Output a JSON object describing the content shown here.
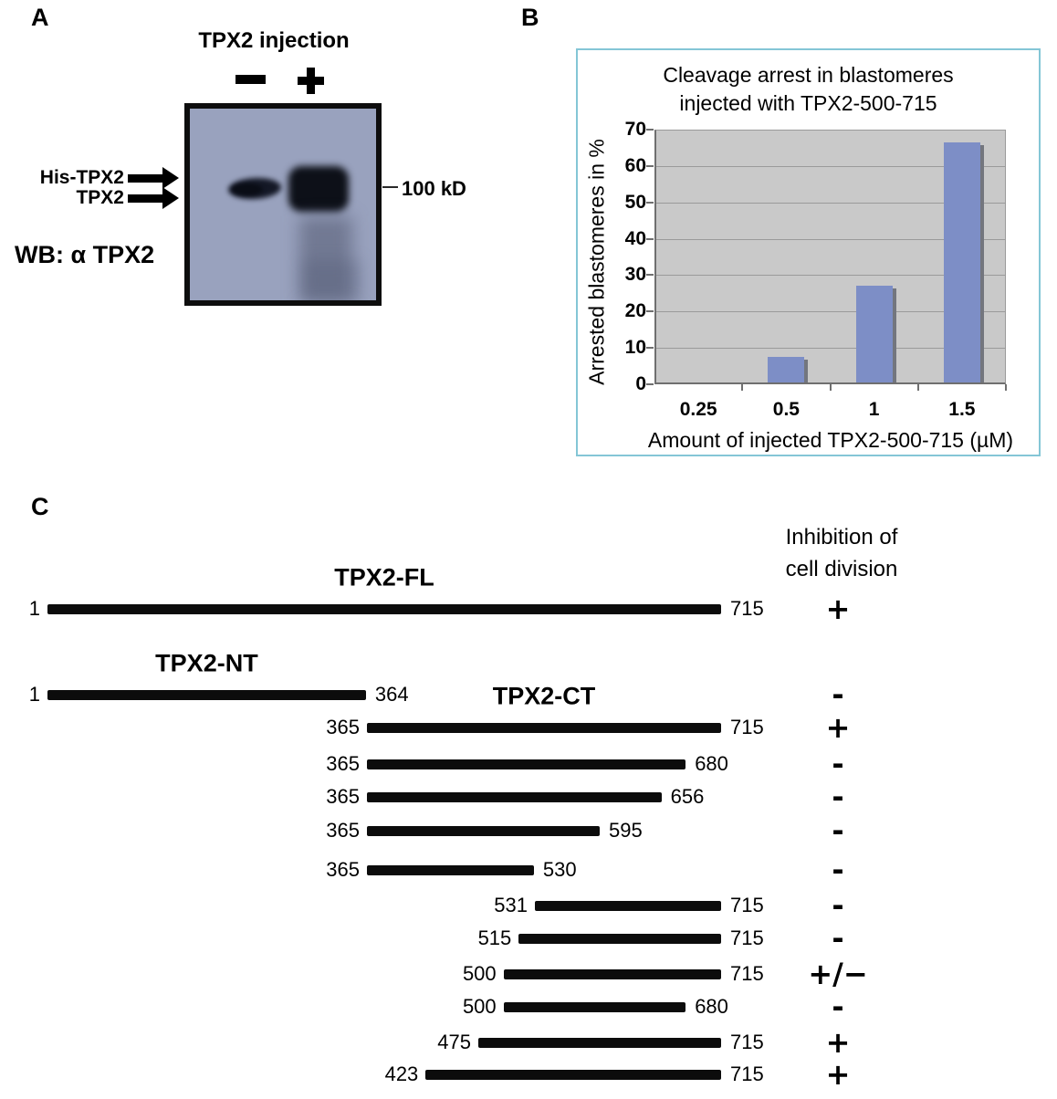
{
  "panel_a": {
    "label": "A",
    "header": "TPX2 injection",
    "lane_symbols": [
      "-",
      "+"
    ],
    "band_labels": [
      "His-TPX2",
      "TPX2"
    ],
    "marker_label": "100 kD",
    "caption": "WB: α TPX2"
  },
  "panel_b": {
    "label": "B",
    "title_lines": [
      "Cleavage arrest in blastomeres",
      "injected with TPX2-500-715"
    ]
  },
  "chart_data": {
    "type": "bar",
    "title": "Cleavage arrest in blastomeres injected with TPX2-500-715",
    "categories": [
      "0.25",
      "0.5",
      "1",
      "1.5"
    ],
    "values": [
      0,
      7.5,
      27,
      66.5
    ],
    "xlabel": "Amount of injected TPX2-500-715 (µM)",
    "ylabel": "Arrested blastomeres in %",
    "ylim": [
      0,
      70
    ],
    "ytick_step": 10,
    "grid": true,
    "legend": false,
    "bar_color": "#7d8ec6",
    "plot_bg": "#c9c9c9",
    "gridline_color": "#9a9a9a"
  },
  "panel_c": {
    "label": "C",
    "column_header_lines": [
      "Inhibition of",
      "cell division"
    ],
    "constructs": [
      {
        "name": "TPX2-FL",
        "start": 1,
        "end": 715,
        "inhibition": "+"
      },
      {
        "name": "TPX2-NT",
        "start": 1,
        "end": 364,
        "inhibition": "-"
      },
      {
        "name": "TPX2-CT",
        "start": 365,
        "end": 715,
        "inhibition": "+"
      },
      {
        "start": 365,
        "end": 680,
        "inhibition": "-"
      },
      {
        "start": 365,
        "end": 656,
        "inhibition": "-"
      },
      {
        "start": 365,
        "end": 595,
        "inhibition": "-"
      },
      {
        "start": 365,
        "end": 530,
        "inhibition": "-"
      },
      {
        "start": 531,
        "end": 715,
        "inhibition": "-"
      },
      {
        "start": 515,
        "end": 715,
        "inhibition": "-"
      },
      {
        "start": 500,
        "end": 715,
        "inhibition": "+/−"
      },
      {
        "start": 500,
        "end": 680,
        "inhibition": "-"
      },
      {
        "start": 475,
        "end": 715,
        "inhibition": "+"
      },
      {
        "start": 423,
        "end": 715,
        "inhibition": "+"
      }
    ]
  }
}
